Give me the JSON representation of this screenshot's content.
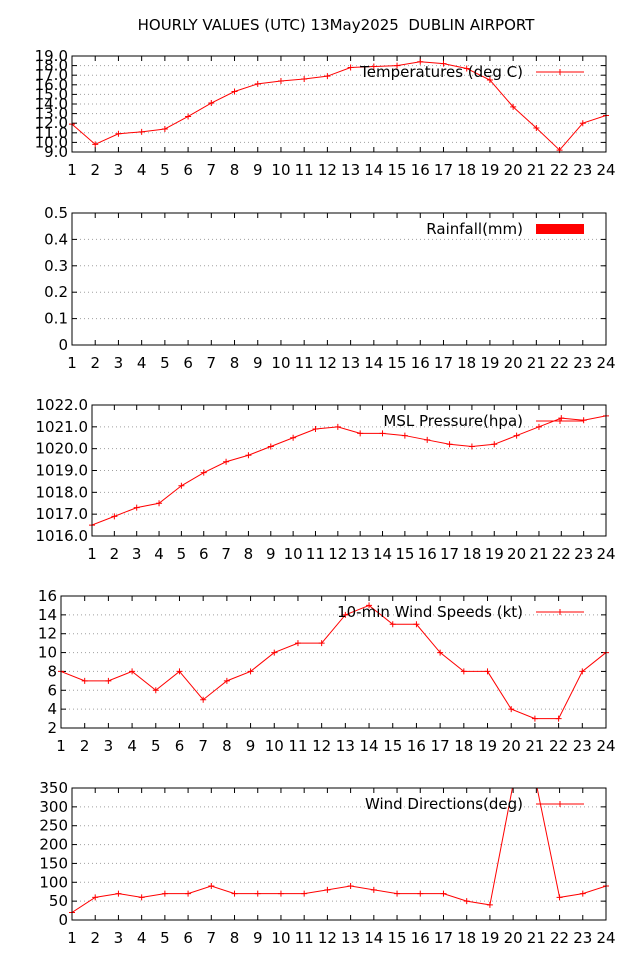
{
  "title": "HOURLY VALUES (UTC) 13May2025  DUBLIN AIRPORT",
  "colors": {
    "series": "#ff0000",
    "grid": "#a0a0a0",
    "axis": "#000000"
  },
  "chart_data": [
    {
      "type": "line",
      "legend": "Temperatures (deg C)",
      "x": [
        1,
        2,
        3,
        4,
        5,
        6,
        7,
        8,
        9,
        10,
        11,
        12,
        13,
        14,
        15,
        16,
        17,
        18,
        19,
        20,
        21,
        22,
        23,
        24
      ],
      "values": [
        11.9,
        9.8,
        10.9,
        11.1,
        11.4,
        12.7,
        14.1,
        15.3,
        16.1,
        16.4,
        16.6,
        16.9,
        17.8,
        17.9,
        18.0,
        18.4,
        18.2,
        17.7,
        16.5,
        13.7,
        11.5,
        9.2,
        12.0,
        12.8
      ],
      "ylim": [
        9.0,
        19.0
      ],
      "yticks": [
        "9.0",
        "10.0",
        "11.0",
        "12.0",
        "13.0",
        "14.0",
        "15.0",
        "16.0",
        "17.0",
        "18.0",
        "19.0"
      ],
      "grid": true,
      "legend_position": "top-right"
    },
    {
      "type": "bar",
      "legend": "Rainfall(mm)",
      "x": [
        1,
        2,
        3,
        4,
        5,
        6,
        7,
        8,
        9,
        10,
        11,
        12,
        13,
        14,
        15,
        16,
        17,
        18,
        19,
        20,
        21,
        22,
        23,
        24
      ],
      "values": [
        0,
        0,
        0,
        0,
        0,
        0,
        0,
        0,
        0,
        0,
        0,
        0,
        0,
        0,
        0,
        0,
        0,
        0,
        0,
        0,
        0,
        0,
        0,
        0
      ],
      "ylim": [
        0,
        0.5
      ],
      "yticks": [
        "0",
        "0.1",
        "0.2",
        "0.3",
        "0.4",
        "0.5"
      ],
      "grid": true,
      "legend_position": "top-right"
    },
    {
      "type": "line",
      "legend": "MSL Pressure(hpa)",
      "x": [
        1,
        2,
        3,
        4,
        5,
        6,
        7,
        8,
        9,
        10,
        11,
        12,
        13,
        14,
        15,
        16,
        17,
        18,
        19,
        20,
        21,
        22,
        23,
        24
      ],
      "values": [
        1016.5,
        1016.9,
        1017.3,
        1017.5,
        1018.3,
        1018.9,
        1019.4,
        1019.7,
        1020.1,
        1020.5,
        1020.9,
        1021.0,
        1020.7,
        1020.7,
        1020.6,
        1020.4,
        1020.2,
        1020.1,
        1020.2,
        1020.6,
        1021.0,
        1021.4,
        1021.3,
        1021.5
      ],
      "ylim": [
        1016.0,
        1022.0
      ],
      "yticks": [
        "1016.0",
        "1017.0",
        "1018.0",
        "1019.0",
        "1020.0",
        "1021.0",
        "1022.0"
      ],
      "grid": true,
      "legend_position": "top-right"
    },
    {
      "type": "line",
      "legend": "10-min Wind Speeds (kt)",
      "x": [
        1,
        2,
        3,
        4,
        5,
        6,
        7,
        8,
        9,
        10,
        11,
        12,
        13,
        14,
        15,
        16,
        17,
        18,
        19,
        20,
        21,
        22,
        23,
        24
      ],
      "values": [
        8,
        7,
        7,
        8,
        6,
        8,
        5,
        7,
        8,
        10,
        11,
        11,
        14,
        15,
        13,
        13,
        10,
        8,
        8,
        4,
        3,
        3,
        8,
        10
      ],
      "ylim": [
        2,
        16
      ],
      "yticks": [
        "2",
        "4",
        "6",
        "8",
        "10",
        "12",
        "14",
        "16"
      ],
      "grid": true,
      "legend_position": "top-right"
    },
    {
      "type": "line",
      "legend": "Wind Directions(deg)",
      "x": [
        1,
        2,
        3,
        4,
        5,
        6,
        7,
        8,
        9,
        10,
        11,
        12,
        13,
        14,
        15,
        16,
        17,
        18,
        19,
        20,
        21,
        22,
        23,
        24
      ],
      "values": [
        20,
        60,
        70,
        60,
        70,
        70,
        90,
        70,
        70,
        70,
        70,
        80,
        90,
        80,
        70,
        70,
        70,
        50,
        40,
        360,
        360,
        60,
        70,
        90
      ],
      "ylim": [
        0,
        350
      ],
      "yticks": [
        "0",
        "50",
        "100",
        "150",
        "200",
        "250",
        "300",
        "350"
      ],
      "grid": true,
      "legend_position": "top-right"
    }
  ]
}
